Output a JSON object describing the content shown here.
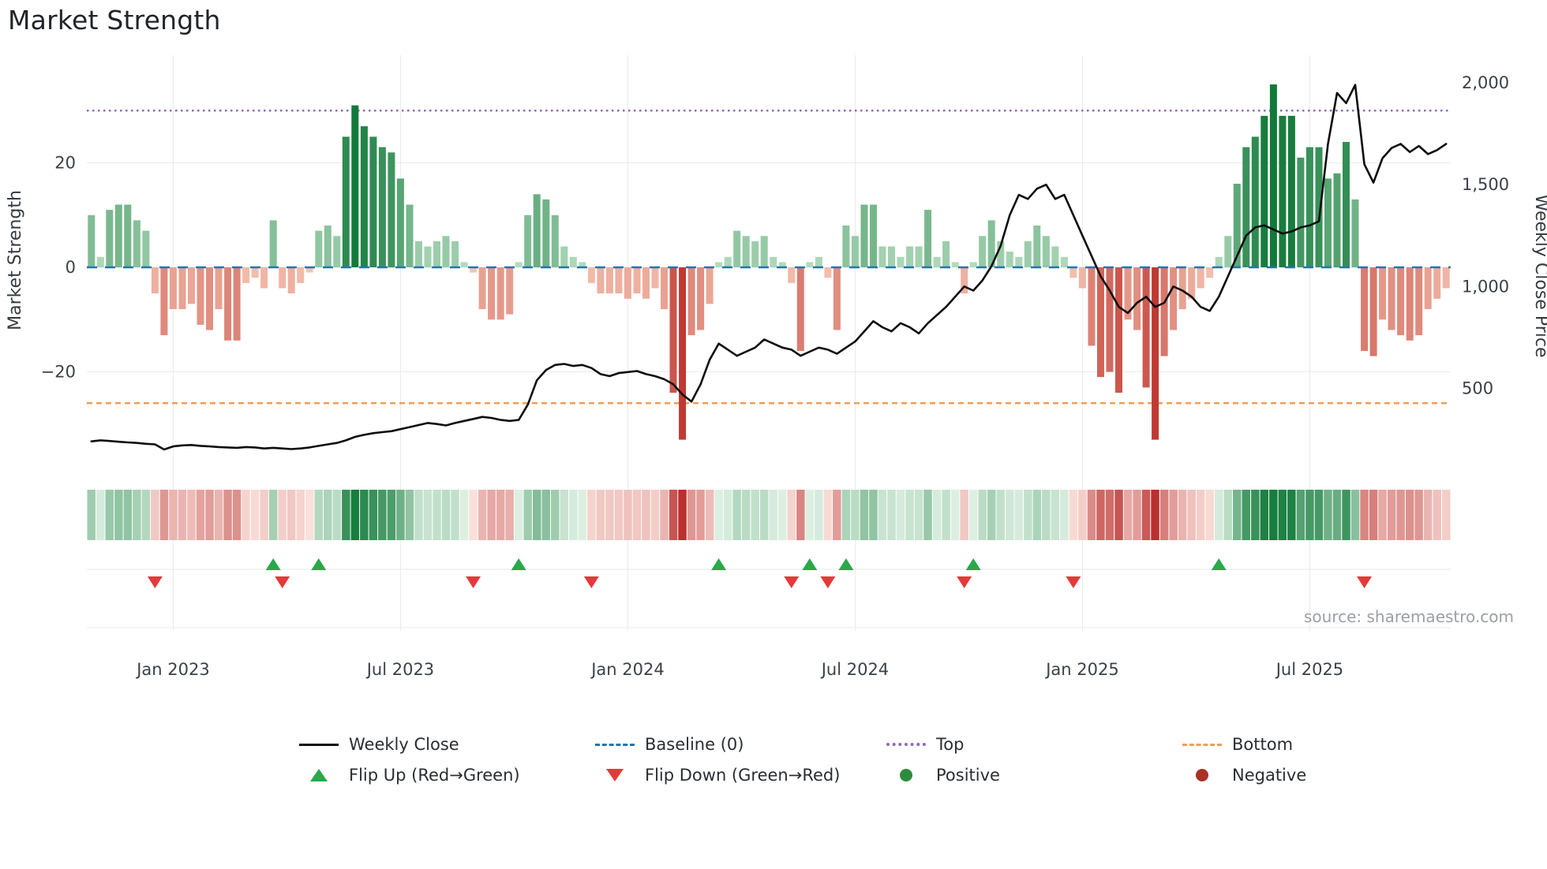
{
  "title": "Market Strength",
  "source": "source: sharemaestro.com",
  "left_axis": {
    "title": "Market Strength",
    "ticks": [
      {
        "value": 20,
        "label": "20"
      },
      {
        "value": 0,
        "label": "0"
      },
      {
        "value": -20,
        "label": "−20"
      }
    ]
  },
  "right_axis": {
    "title": "Weekly Close Price",
    "ticks": [
      {
        "value": 2000,
        "label": "2,000"
      },
      {
        "value": 1500,
        "label": "1,500"
      },
      {
        "value": 1000,
        "label": "1,000"
      },
      {
        "value": 500,
        "label": "500"
      }
    ]
  },
  "x_axis": {
    "ticks": [
      {
        "week": 9,
        "label": "Jan 2023"
      },
      {
        "week": 34,
        "label": "Jul 2023"
      },
      {
        "week": 59,
        "label": "Jan 2024"
      },
      {
        "week": 84,
        "label": "Jul 2024"
      },
      {
        "week": 109,
        "label": "Jan 2025"
      },
      {
        "week": 134,
        "label": "Jul 2025"
      }
    ]
  },
  "chart_data": {
    "type": "combo",
    "frequency": "weekly",
    "x_start": "Nov 2022",
    "x_end": "Oct 2025",
    "baseline": 0,
    "top_threshold": 30,
    "bottom_threshold": -26,
    "left_ylim": [
      -40,
      40
    ],
    "right_ylim": [
      150,
      2050
    ],
    "grid": true,
    "legend_position": "bottom",
    "series": [
      {
        "name": "Market Strength",
        "type": "bar",
        "values": [
          10,
          2,
          11,
          12,
          12,
          9,
          7,
          -5,
          -13,
          -8,
          -8,
          -7,
          -11,
          -12,
          -8,
          -14,
          -14,
          -3,
          -2,
          -4,
          9,
          -4,
          -5,
          -3,
          -1,
          7,
          8,
          6,
          25,
          31,
          27,
          25,
          23,
          22,
          17,
          12,
          5,
          4,
          5,
          6,
          5,
          1,
          -1,
          -8,
          -10,
          -10,
          -9,
          1,
          10,
          14,
          13,
          10,
          4,
          2,
          1,
          -3,
          -5,
          -5,
          -5,
          -6,
          -5,
          -6,
          -4,
          -8,
          -24,
          -33,
          -13,
          -12,
          -7,
          1,
          2,
          7,
          6,
          5,
          6,
          2,
          1,
          -3,
          -16,
          1,
          2,
          -2,
          -12,
          8,
          6,
          12,
          12,
          4,
          4,
          2,
          4,
          4,
          11,
          2,
          5,
          1,
          -5,
          1,
          6,
          9,
          5,
          3,
          2,
          5,
          8,
          6,
          4,
          2,
          -2,
          -4,
          -15,
          -21,
          -20,
          -24,
          -10,
          -12,
          -23,
          -33,
          -17,
          -12,
          -8,
          -6,
          -4,
          -2,
          2,
          6,
          16,
          23,
          25,
          29,
          35,
          29,
          29,
          21,
          23,
          23,
          17,
          18,
          24,
          13,
          -16,
          -17,
          -10,
          -12,
          -13,
          -14,
          -13,
          -8,
          -6,
          -4
        ]
      },
      {
        "name": "Weekly Close",
        "type": "line",
        "values": [
          240,
          245,
          242,
          238,
          235,
          232,
          228,
          225,
          200,
          215,
          220,
          222,
          218,
          215,
          212,
          210,
          208,
          212,
          210,
          205,
          208,
          205,
          202,
          205,
          210,
          218,
          225,
          232,
          245,
          262,
          272,
          280,
          285,
          290,
          300,
          310,
          320,
          330,
          325,
          318,
          330,
          340,
          350,
          360,
          355,
          345,
          340,
          345,
          420,
          540,
          590,
          615,
          620,
          610,
          615,
          600,
          570,
          560,
          575,
          580,
          585,
          570,
          560,
          545,
          520,
          470,
          435,
          520,
          640,
          720,
          690,
          660,
          680,
          700,
          740,
          720,
          700,
          690,
          660,
          680,
          700,
          690,
          670,
          700,
          730,
          780,
          830,
          800,
          780,
          820,
          800,
          770,
          820,
          860,
          900,
          950,
          1000,
          980,
          1030,
          1100,
          1200,
          1350,
          1450,
          1430,
          1480,
          1500,
          1430,
          1450,
          1350,
          1250,
          1150,
          1050,
          980,
          900,
          870,
          920,
          950,
          900,
          920,
          1000,
          980,
          950,
          900,
          880,
          950,
          1050,
          1150,
          1250,
          1290,
          1300,
          1280,
          1260,
          1270,
          1290,
          1300,
          1320,
          1700,
          1950,
          1900,
          1990,
          1600,
          1510,
          1630,
          1680,
          1700,
          1660,
          1690,
          1650,
          1670,
          1700
        ]
      }
    ],
    "subplots": [
      {
        "name": "strength-heatmap",
        "type": "heatmap",
        "description": "weekly strength intensity strip, same values as Market Strength bars"
      },
      {
        "name": "flip-markers",
        "type": "scatter",
        "description": "up triangle where strength flips negative to positive, down triangle where it flips positive to negative"
      }
    ]
  },
  "legend": {
    "items": [
      {
        "label": "Weekly Close",
        "type": "line"
      },
      {
        "label": "Baseline (0)",
        "type": "dashed-line"
      },
      {
        "label": "Top",
        "type": "dotted-line"
      },
      {
        "label": "Bottom",
        "type": "dashed-line"
      },
      {
        "label": "Flip Up (Red→Green)",
        "type": "triangle-up"
      },
      {
        "label": "Flip Down (Green→Red)",
        "type": "triangle-down"
      },
      {
        "label": "Positive",
        "type": "dot"
      },
      {
        "label": "Negative",
        "type": "dot"
      }
    ]
  },
  "colors": {
    "line": "#0d0d0d",
    "baseline": "#2176ae",
    "top": "#9467bd",
    "bottom": "#f09e57",
    "flip_up": "#2aa84a",
    "flip_down": "#e23a3a",
    "positive_dot": "#2d8c3c",
    "negative_dot": "#a93226",
    "bar_pos_light": "#b7dec1",
    "bar_pos_dark": "#117a39",
    "bar_neg_light": "#f7c8b5",
    "bar_neg_dark": "#c03932",
    "grid": "#e8eaec",
    "tick_text": "#3a4149"
  }
}
